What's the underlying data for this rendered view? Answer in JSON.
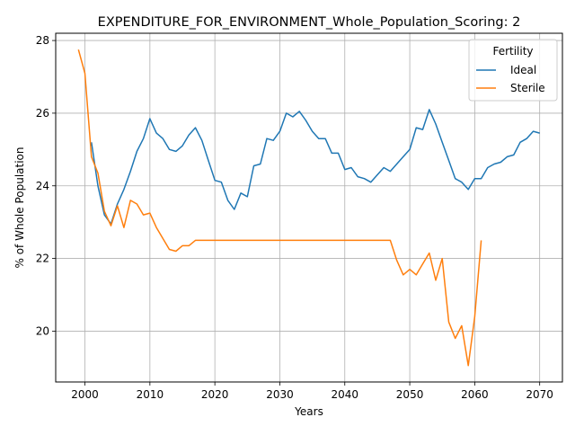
{
  "chart_data": {
    "type": "line",
    "title": "EXPENDITURE_FOR_ENVIRONMENT_Whole_Population_Scoring: 2",
    "xlabel": "Years",
    "ylabel": "% of Whole Population",
    "xlim": [
      1995.5,
      2073.5
    ],
    "ylim": [
      18.6,
      28.2
    ],
    "xticks": [
      2000,
      2010,
      2020,
      2030,
      2040,
      2050,
      2060,
      2070
    ],
    "yticks": [
      20,
      22,
      24,
      26,
      28
    ],
    "grid": true,
    "legend": {
      "title": "Fertility",
      "placement": "top-right"
    },
    "series": [
      {
        "name": "Ideal",
        "color": "#1f77b4",
        "x": [
          2001,
          2002,
          2003,
          2004,
          2005,
          2006,
          2007,
          2008,
          2009,
          2010,
          2011,
          2012,
          2013,
          2014,
          2015,
          2016,
          2017,
          2018,
          2019,
          2020,
          2021,
          2022,
          2023,
          2024,
          2025,
          2026,
          2027,
          2028,
          2029,
          2030,
          2031,
          2032,
          2033,
          2034,
          2035,
          2036,
          2037,
          2038,
          2039,
          2040,
          2041,
          2042,
          2043,
          2044,
          2045,
          2046,
          2047,
          2048,
          2049,
          2050,
          2051,
          2052,
          2053,
          2054,
          2055,
          2056,
          2057,
          2058,
          2059,
          2060,
          2061,
          2062,
          2063,
          2064,
          2065,
          2066,
          2067,
          2068,
          2069,
          2070
        ],
        "values": [
          25.2,
          24.0,
          23.2,
          22.95,
          23.5,
          23.9,
          24.4,
          24.95,
          25.3,
          25.85,
          25.45,
          25.3,
          25.0,
          24.95,
          25.1,
          25.4,
          25.6,
          25.25,
          24.7,
          24.15,
          24.1,
          23.6,
          23.35,
          23.8,
          23.7,
          24.55,
          24.6,
          25.3,
          25.25,
          25.5,
          26.0,
          25.9,
          26.05,
          25.8,
          25.5,
          25.3,
          25.3,
          24.9,
          24.9,
          24.45,
          24.5,
          24.25,
          24.2,
          24.1,
          24.3,
          24.5,
          24.4,
          24.6,
          24.8,
          25.0,
          25.6,
          25.55,
          26.1,
          25.7,
          25.2,
          24.7,
          24.2,
          24.1,
          23.9,
          24.2,
          24.2,
          24.5,
          24.6,
          24.65,
          24.8,
          24.85,
          25.2,
          25.3,
          25.5,
          25.45
        ]
      },
      {
        "name": "Sterile",
        "color": "#ff7f0e",
        "x": [
          1999,
          2000,
          2001,
          2002,
          2003,
          2004,
          2005,
          2006,
          2007,
          2008,
          2009,
          2010,
          2011,
          2012,
          2013,
          2014,
          2015,
          2016,
          2017,
          2018,
          2019,
          2020,
          2021,
          2022,
          2023,
          2024,
          2025,
          2026,
          2027,
          2028,
          2029,
          2030,
          2031,
          2032,
          2033,
          2034,
          2035,
          2036,
          2037,
          2038,
          2039,
          2040,
          2041,
          2042,
          2043,
          2044,
          2045,
          2046,
          2047,
          2048,
          2049,
          2050,
          2051,
          2052,
          2053,
          2054,
          2055,
          2056,
          2057,
          2058,
          2059,
          2060,
          2061
        ],
        "values": [
          27.75,
          27.1,
          24.8,
          24.35,
          23.3,
          22.9,
          23.45,
          22.85,
          23.6,
          23.5,
          23.2,
          23.25,
          22.85,
          22.55,
          22.25,
          22.2,
          22.35,
          22.35,
          22.5,
          22.5,
          22.5,
          22.5,
          22.5,
          22.5,
          22.5,
          22.5,
          22.5,
          22.5,
          22.5,
          22.5,
          22.5,
          22.5,
          22.5,
          22.5,
          22.5,
          22.5,
          22.5,
          22.5,
          22.5,
          22.5,
          22.5,
          22.5,
          22.5,
          22.5,
          22.5,
          22.5,
          22.5,
          22.5,
          22.5,
          21.95,
          21.55,
          21.7,
          21.55,
          21.85,
          22.15,
          21.4,
          22.0,
          20.25,
          19.8,
          20.15,
          19.05,
          20.4,
          22.5
        ]
      }
    ]
  }
}
